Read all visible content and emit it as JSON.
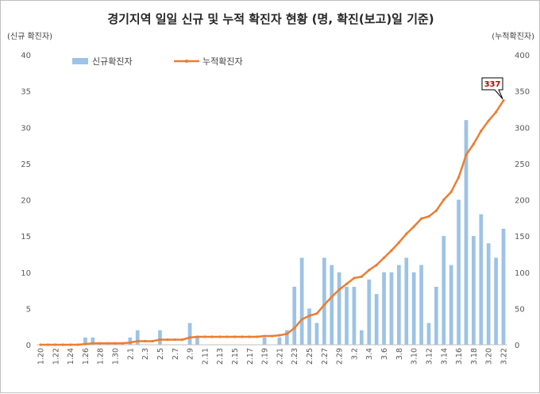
{
  "chart_data": {
    "type": "bar+line",
    "title": "경기지역 일일 신규 및 누적 확진자 현황 (명, 확진(보고)일 기준)",
    "y_left_label": "(신규 확진자)",
    "y_right_label": "(누적확진자)",
    "ylim_left": [
      0,
      40
    ],
    "ylim_right": [
      0,
      400
    ],
    "yticks_left": [
      "0",
      "5",
      "10",
      "15",
      "20",
      "25",
      "30",
      "35",
      "40"
    ],
    "yticks_right": [
      "0",
      "50",
      "100",
      "150",
      "200",
      "250",
      "300",
      "350",
      "400"
    ],
    "x_tick_labels": [
      "1.20",
      "1.22",
      "1.24",
      "1.26",
      "1.28",
      "1.30",
      "2.1",
      "2.3",
      "2.5",
      "2.7",
      "2.9",
      "2.11",
      "2.13",
      "2.15",
      "2.17",
      "2.19",
      "2.21",
      "2.23",
      "2.25",
      "2.27",
      "2.29",
      "3.2",
      "3.4",
      "3.6",
      "3.8",
      "3.10",
      "3.12",
      "3.14",
      "3.16",
      "3.18",
      "3.20",
      "3.22"
    ],
    "categories": [
      "1.20",
      "1.21",
      "1.22",
      "1.23",
      "1.24",
      "1.25",
      "1.26",
      "1.27",
      "1.28",
      "1.29",
      "1.30",
      "1.31",
      "2.1",
      "2.2",
      "2.3",
      "2.4",
      "2.5",
      "2.6",
      "2.7",
      "2.8",
      "2.9",
      "2.10",
      "2.11",
      "2.12",
      "2.13",
      "2.14",
      "2.15",
      "2.16",
      "2.17",
      "2.18",
      "2.19",
      "2.20",
      "2.21",
      "2.22",
      "2.23",
      "2.24",
      "2.25",
      "2.26",
      "2.27",
      "2.28",
      "2.29",
      "3.1",
      "3.2",
      "3.3",
      "3.4",
      "3.5",
      "3.6",
      "3.7",
      "3.8",
      "3.9",
      "3.10",
      "3.11",
      "3.12",
      "3.13",
      "3.14",
      "3.15",
      "3.16",
      "3.17",
      "3.18",
      "3.19",
      "3.20",
      "3.21",
      "3.22"
    ],
    "grid": false,
    "legend_position": "top-left",
    "series": [
      {
        "name": "신규확진자",
        "type": "bar",
        "axis": "left",
        "color": "#9dc3e6",
        "values": [
          0,
          0,
          0,
          0,
          0,
          0,
          1,
          1,
          0,
          0,
          0,
          0,
          1,
          2,
          0,
          0,
          2,
          0,
          0,
          0,
          3,
          1,
          0,
          0,
          0,
          0,
          0,
          0,
          0,
          0,
          1,
          0,
          1,
          2,
          8,
          12,
          5,
          3,
          12,
          11,
          10,
          8,
          8,
          2,
          9,
          7,
          10,
          10,
          11,
          12,
          10,
          11,
          3,
          8,
          15,
          11,
          20,
          31,
          15,
          18,
          14,
          12,
          16
        ]
      },
      {
        "name": "누적확진자",
        "type": "line",
        "axis": "right",
        "color": "#ed7d31",
        "values": [
          0,
          0,
          0,
          0,
          0,
          0,
          1,
          2,
          2,
          2,
          2,
          2,
          3,
          5,
          5,
          5,
          7,
          7,
          7,
          7,
          10,
          11,
          11,
          11,
          11,
          11,
          11,
          11,
          11,
          11,
          12,
          12,
          13,
          15,
          23,
          35,
          40,
          43,
          55,
          66,
          76,
          84,
          92,
          94,
          103,
          110,
          120,
          130,
          141,
          153,
          163,
          174,
          177,
          185,
          200,
          211,
          231,
          262,
          277,
          295,
          309,
          321,
          337
        ]
      }
    ],
    "annotation": {
      "label": "337",
      "series": "누적확진자",
      "category": "3.22"
    }
  }
}
